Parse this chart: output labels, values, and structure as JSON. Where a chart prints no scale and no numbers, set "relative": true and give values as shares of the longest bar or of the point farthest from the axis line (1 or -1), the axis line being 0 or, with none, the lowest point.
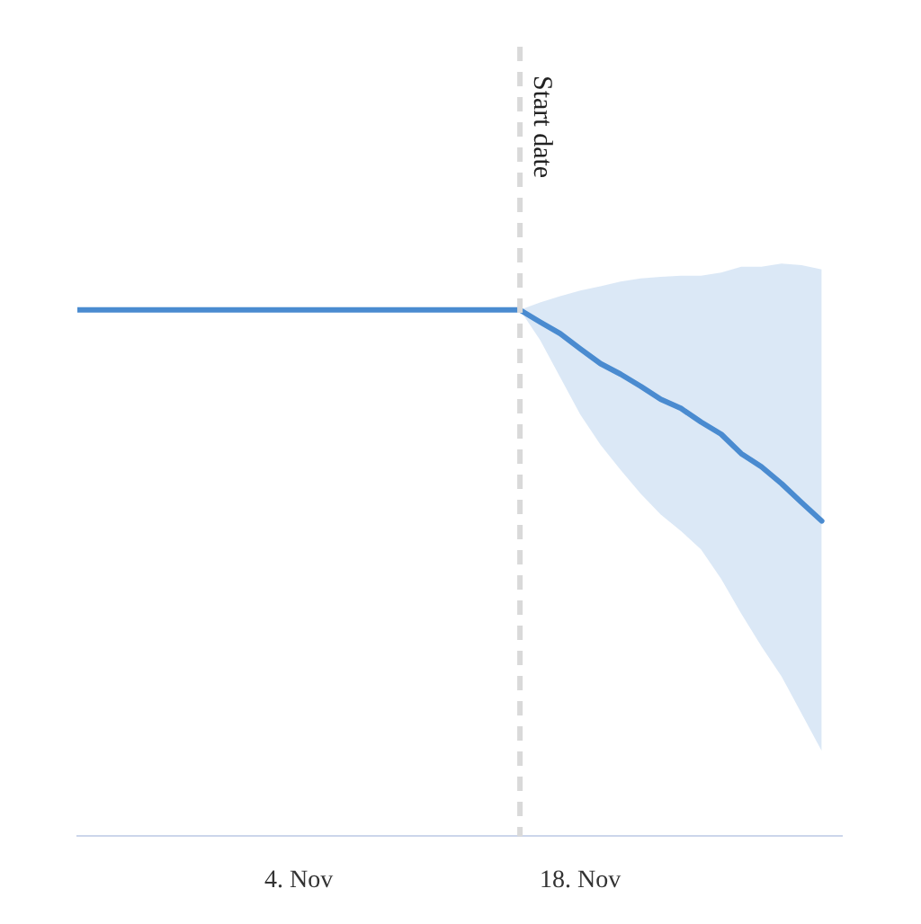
{
  "chart_data": {
    "type": "line",
    "relative": true,
    "legend": false,
    "marker": "none",
    "line_style": "solid",
    "x": [
      "--10-24",
      "--11-15",
      "--11-16",
      "--11-17",
      "--11-18",
      "--11-19",
      "--11-20",
      "--11-21",
      "--11-22",
      "--11-23",
      "--11-24",
      "--11-25",
      "--11-26",
      "--11-27",
      "--11-28",
      "--11-29",
      "--11-30"
    ],
    "xlim": [
      "--10-24",
      "--12-01"
    ],
    "xticks": [
      {
        "value": "--11-04",
        "label": "4. Nov"
      },
      {
        "value": "--11-18",
        "label": "18. Nov"
      }
    ],
    "series": [
      {
        "color": "#4a8bd0",
        "values": [
          1,
          1,
          0.977,
          0.955,
          0.926,
          0.898,
          0.878,
          0.855,
          0.83,
          0.813,
          0.787,
          0.764,
          0.727,
          0.702,
          0.67,
          0.634,
          0.599
        ],
        "lower": [
          null,
          1,
          0.943,
          0.872,
          0.801,
          0.744,
          0.696,
          0.651,
          0.611,
          0.58,
          0.545,
          0.489,
          0.423,
          0.361,
          0.304,
          0.233,
          0.162
        ],
        "upper": [
          null,
          1,
          1.014,
          1.026,
          1.037,
          1.045,
          1.054,
          1.06,
          1.063,
          1.065,
          1.065,
          1.071,
          1.082,
          1.082,
          1.088,
          1.085,
          1.077
        ]
      }
    ],
    "ref_lines": [
      {
        "axis": "x",
        "value": "--11-15",
        "label": "Start date",
        "color": "#d9d9d9",
        "line_style": "dashed"
      }
    ]
  }
}
